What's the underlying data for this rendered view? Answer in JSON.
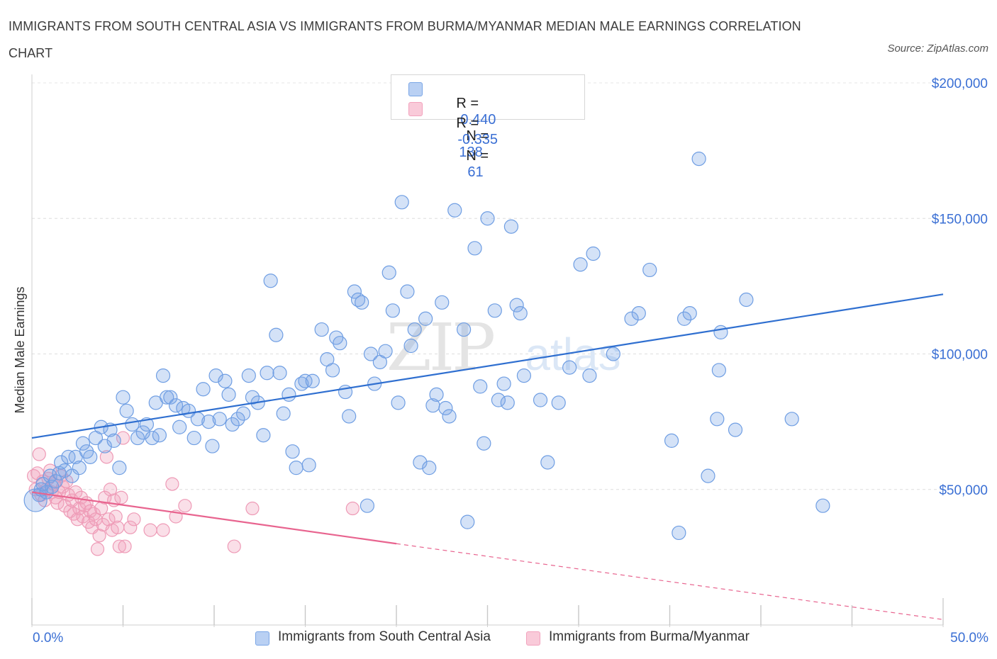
{
  "title": "IMMIGRANTS FROM SOUTH CENTRAL ASIA VS IMMIGRANTS FROM BURMA/MYANMAR MEDIAN MALE EARNINGS CORRELATION CHART",
  "source": "Source: ZipAtlas.com",
  "legend": {
    "row1": {
      "r_label": "R =",
      "r_value": "0.440",
      "n_label": "N =",
      "n_value": "138"
    },
    "row2": {
      "r_label": "R =",
      "r_value": "-0.335",
      "n_label": "N =",
      "n_value": "61"
    }
  },
  "bottom_legend": {
    "series1": "Immigrants from South Central Asia",
    "series2": "Immigrants from Burma/Myanmar"
  },
  "x_axis": {
    "min_label": "0.0%",
    "max_label": "50.0%"
  },
  "chart_data": {
    "type": "scatter",
    "ylabel": "Median Male Earnings",
    "xlim": [
      0,
      50
    ],
    "ylim": [
      0,
      200000
    ],
    "y_ticks": [
      {
        "value": 200000,
        "label": "$200,000"
      },
      {
        "value": 150000,
        "label": "$150,000"
      },
      {
        "value": 100000,
        "label": "$100,000"
      },
      {
        "value": 50000,
        "label": "$50,000"
      }
    ],
    "grid": true,
    "legend_position": "top-center",
    "colors": {
      "series1": "#7aa6e6",
      "series2": "#f2a2bd",
      "line1": "#2f6fd0",
      "line2": "#e8648f"
    },
    "series": [
      {
        "name": "Immigrants from South Central Asia",
        "R": 0.44,
        "N": 138,
        "trend": {
          "x": [
            0,
            50
          ],
          "y": [
            69000,
            122000
          ]
        },
        "points": [
          [
            0.2,
            46000
          ],
          [
            0.4,
            48000
          ],
          [
            0.5,
            50000
          ],
          [
            0.6,
            52000
          ],
          [
            0.8,
            49000
          ],
          [
            1.0,
            55000
          ],
          [
            1.1,
            51000
          ],
          [
            1.3,
            53000
          ],
          [
            1.5,
            56000
          ],
          [
            1.6,
            60000
          ],
          [
            1.8,
            57000
          ],
          [
            2.0,
            62000
          ],
          [
            2.2,
            55000
          ],
          [
            2.4,
            62000
          ],
          [
            2.6,
            58000
          ],
          [
            2.8,
            67000
          ],
          [
            3.0,
            64000
          ],
          [
            3.2,
            62000
          ],
          [
            3.5,
            69000
          ],
          [
            3.8,
            73000
          ],
          [
            4.0,
            66000
          ],
          [
            4.3,
            72000
          ],
          [
            4.5,
            68000
          ],
          [
            4.8,
            58000
          ],
          [
            5.0,
            84000
          ],
          [
            5.2,
            79000
          ],
          [
            5.5,
            74000
          ],
          [
            5.8,
            69000
          ],
          [
            6.1,
            71000
          ],
          [
            6.3,
            74000
          ],
          [
            6.6,
            69000
          ],
          [
            6.8,
            82000
          ],
          [
            7.0,
            70000
          ],
          [
            7.2,
            92000
          ],
          [
            7.4,
            84000
          ],
          [
            7.6,
            84000
          ],
          [
            7.9,
            81000
          ],
          [
            8.1,
            73000
          ],
          [
            8.3,
            80000
          ],
          [
            8.6,
            79000
          ],
          [
            8.9,
            69000
          ],
          [
            9.1,
            76000
          ],
          [
            9.4,
            87000
          ],
          [
            9.7,
            75000
          ],
          [
            9.9,
            66000
          ],
          [
            10.1,
            92000
          ],
          [
            10.3,
            76000
          ],
          [
            10.6,
            90000
          ],
          [
            10.8,
            85000
          ],
          [
            11.0,
            74000
          ],
          [
            11.3,
            76000
          ],
          [
            11.6,
            78000
          ],
          [
            11.9,
            92000
          ],
          [
            12.1,
            84000
          ],
          [
            12.4,
            82000
          ],
          [
            12.7,
            70000
          ],
          [
            12.9,
            93000
          ],
          [
            13.1,
            127000
          ],
          [
            13.4,
            107000
          ],
          [
            13.6,
            93000
          ],
          [
            13.8,
            78000
          ],
          [
            14.1,
            85000
          ],
          [
            14.3,
            64000
          ],
          [
            14.5,
            58000
          ],
          [
            14.8,
            89000
          ],
          [
            15.0,
            90000
          ],
          [
            15.2,
            59000
          ],
          [
            15.4,
            90000
          ],
          [
            15.9,
            109000
          ],
          [
            16.2,
            98000
          ],
          [
            16.5,
            94000
          ],
          [
            16.7,
            106000
          ],
          [
            16.9,
            104000
          ],
          [
            17.2,
            86000
          ],
          [
            17.4,
            77000
          ],
          [
            17.7,
            123000
          ],
          [
            17.9,
            120000
          ],
          [
            18.1,
            119000
          ],
          [
            18.4,
            44000
          ],
          [
            18.6,
            100000
          ],
          [
            18.8,
            89000
          ],
          [
            19.1,
            97000
          ],
          [
            19.4,
            101000
          ],
          [
            19.6,
            130000
          ],
          [
            19.8,
            116000
          ],
          [
            20.1,
            82000
          ],
          [
            20.3,
            156000
          ],
          [
            20.6,
            123000
          ],
          [
            20.8,
            103000
          ],
          [
            21.0,
            109000
          ],
          [
            21.3,
            60000
          ],
          [
            21.6,
            113000
          ],
          [
            21.8,
            58000
          ],
          [
            22.0,
            81000
          ],
          [
            22.2,
            85000
          ],
          [
            22.5,
            119000
          ],
          [
            22.7,
            80000
          ],
          [
            22.9,
            77000
          ],
          [
            23.2,
            153000
          ],
          [
            23.7,
            109000
          ],
          [
            23.9,
            38000
          ],
          [
            24.3,
            139000
          ],
          [
            24.6,
            88000
          ],
          [
            24.8,
            67000
          ],
          [
            25.0,
            150000
          ],
          [
            25.4,
            116000
          ],
          [
            25.6,
            83000
          ],
          [
            25.9,
            89000
          ],
          [
            26.1,
            82000
          ],
          [
            26.3,
            147000
          ],
          [
            26.6,
            118000
          ],
          [
            26.8,
            115000
          ],
          [
            27.0,
            92000
          ],
          [
            27.9,
            83000
          ],
          [
            28.3,
            60000
          ],
          [
            28.9,
            82000
          ],
          [
            29.5,
            95000
          ],
          [
            30.1,
            133000
          ],
          [
            30.6,
            92000
          ],
          [
            30.8,
            137000
          ],
          [
            31.9,
            100000
          ],
          [
            32.9,
            113000
          ],
          [
            33.3,
            115000
          ],
          [
            33.9,
            131000
          ],
          [
            35.1,
            68000
          ],
          [
            35.5,
            34000
          ],
          [
            35.8,
            113000
          ],
          [
            36.1,
            115000
          ],
          [
            36.6,
            172000
          ],
          [
            37.1,
            55000
          ],
          [
            37.6,
            76000
          ],
          [
            37.7,
            94000
          ],
          [
            37.8,
            108000
          ],
          [
            38.6,
            72000
          ],
          [
            39.2,
            120000
          ],
          [
            41.7,
            76000
          ],
          [
            43.4,
            44000
          ]
        ]
      },
      {
        "name": "Immigrants from Burma/Myanmar",
        "R": -0.335,
        "N": 61,
        "trend": {
          "x": [
            0,
            20
          ],
          "y": [
            49000,
            30000
          ],
          "dashed_extension": {
            "x": [
              20,
              50
            ],
            "y": [
              30000,
              2000
            ]
          }
        },
        "points": [
          [
            0.1,
            55000
          ],
          [
            0.2,
            50000
          ],
          [
            0.3,
            56000
          ],
          [
            0.4,
            63000
          ],
          [
            0.5,
            48000
          ],
          [
            0.6,
            53000
          ],
          [
            0.7,
            46000
          ],
          [
            0.8,
            50000
          ],
          [
            0.9,
            54000
          ],
          [
            1.0,
            57000
          ],
          [
            1.1,
            49000
          ],
          [
            1.2,
            52000
          ],
          [
            1.3,
            47000
          ],
          [
            1.4,
            45000
          ],
          [
            1.5,
            49000
          ],
          [
            1.6,
            55000
          ],
          [
            1.7,
            51000
          ],
          [
            1.8,
            44000
          ],
          [
            1.9,
            53000
          ],
          [
            2.0,
            48000
          ],
          [
            2.1,
            42000
          ],
          [
            2.2,
            46000
          ],
          [
            2.3,
            41000
          ],
          [
            2.4,
            49000
          ],
          [
            2.5,
            39000
          ],
          [
            2.6,
            43000
          ],
          [
            2.7,
            47000
          ],
          [
            2.8,
            40000
          ],
          [
            2.9,
            44000
          ],
          [
            3.0,
            45000
          ],
          [
            3.1,
            38000
          ],
          [
            3.2,
            42000
          ],
          [
            3.3,
            36000
          ],
          [
            3.4,
            41000
          ],
          [
            3.5,
            39000
          ],
          [
            3.6,
            28000
          ],
          [
            3.7,
            33000
          ],
          [
            3.8,
            43000
          ],
          [
            3.9,
            37000
          ],
          [
            4.0,
            47000
          ],
          [
            4.1,
            62000
          ],
          [
            4.2,
            39000
          ],
          [
            4.3,
            50000
          ],
          [
            4.4,
            35000
          ],
          [
            4.5,
            46000
          ],
          [
            4.6,
            40000
          ],
          [
            4.7,
            36000
          ],
          [
            4.8,
            29000
          ],
          [
            4.9,
            47000
          ],
          [
            5.0,
            69000
          ],
          [
            5.1,
            29000
          ],
          [
            5.4,
            36000
          ],
          [
            5.6,
            39000
          ],
          [
            6.5,
            35000
          ],
          [
            7.2,
            35000
          ],
          [
            7.7,
            52000
          ],
          [
            7.9,
            40000
          ],
          [
            8.4,
            44000
          ],
          [
            11.1,
            29000
          ],
          [
            12.1,
            43000
          ],
          [
            17.6,
            43000
          ]
        ]
      }
    ]
  }
}
